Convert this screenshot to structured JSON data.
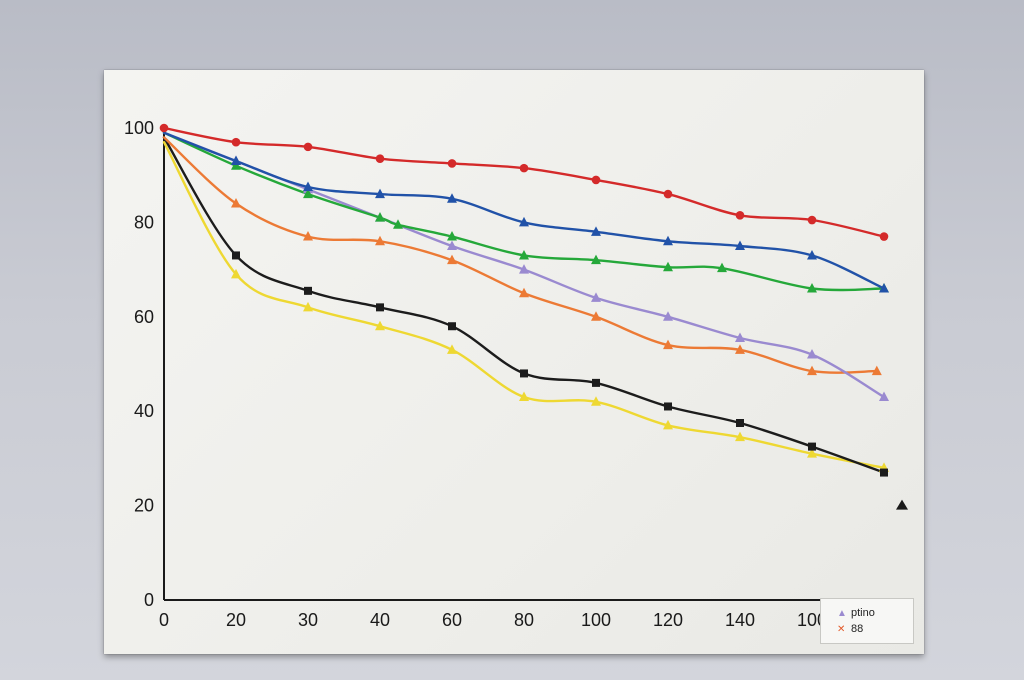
{
  "chart_data": {
    "type": "line",
    "title": "",
    "xlabel": "",
    "ylabel": "",
    "x_tick_labels": [
      "0",
      "20",
      "30",
      "40",
      "60",
      "80",
      "100",
      "120",
      "140",
      "100"
    ],
    "y_tick_labels": [
      "0",
      "20",
      "40",
      "60",
      "80",
      "100"
    ],
    "ylim": [
      0,
      100
    ],
    "grid": false,
    "legend_position": "bottom-right",
    "legend_entries": [
      {
        "text": "ptino",
        "marker": "triangle",
        "color": "#9a8ad0"
      },
      {
        "text": "88",
        "marker": "cross",
        "color": "#e35a2a"
      }
    ],
    "stray_marker": {
      "x": 205,
      "y": 20,
      "color": "#1a1a1a"
    },
    "x": [
      0,
      20,
      40,
      60,
      80,
      100,
      120,
      140,
      160,
      180,
      200
    ],
    "series": [
      {
        "color": "#d42a2a",
        "marker": "circle",
        "points": [
          [
            0,
            100
          ],
          [
            20,
            97
          ],
          [
            40,
            96
          ],
          [
            60,
            93.5
          ],
          [
            80,
            92.5
          ],
          [
            100,
            91.5
          ],
          [
            120,
            89
          ],
          [
            140,
            86
          ],
          [
            160,
            81.5
          ],
          [
            180,
            80.5
          ],
          [
            200,
            77
          ]
        ]
      },
      {
        "color": "#2152a8",
        "marker": "triangle",
        "points": [
          [
            0,
            99
          ],
          [
            20,
            93
          ],
          [
            40,
            87.5
          ],
          [
            60,
            86
          ],
          [
            80,
            85
          ],
          [
            100,
            80
          ],
          [
            120,
            78
          ],
          [
            140,
            76
          ],
          [
            160,
            75
          ],
          [
            180,
            73
          ],
          [
            200,
            66
          ]
        ]
      },
      {
        "color": "#25a83a",
        "marker": "triangle",
        "points": [
          [
            0,
            99
          ],
          [
            20,
            92
          ],
          [
            40,
            86
          ],
          [
            60,
            81
          ],
          [
            65,
            79.5
          ],
          [
            80,
            77
          ],
          [
            100,
            73
          ],
          [
            120,
            72
          ],
          [
            140,
            70.5
          ],
          [
            155,
            70.3
          ],
          [
            180,
            66
          ],
          [
            200,
            66
          ]
        ]
      },
      {
        "color": "#9a8ad0",
        "marker": "triangle",
        "points": [
          [
            0,
            99
          ],
          [
            20,
            93
          ],
          [
            40,
            87
          ],
          [
            60,
            81
          ],
          [
            80,
            75
          ],
          [
            100,
            70
          ],
          [
            120,
            64
          ],
          [
            140,
            60
          ],
          [
            160,
            55.5
          ],
          [
            180,
            52
          ],
          [
            200,
            43
          ]
        ]
      },
      {
        "color": "#ec7a35",
        "marker": "triangle",
        "points": [
          [
            0,
            98
          ],
          [
            20,
            84
          ],
          [
            40,
            77
          ],
          [
            60,
            76
          ],
          [
            80,
            72
          ],
          [
            100,
            65
          ],
          [
            120,
            60
          ],
          [
            140,
            54
          ],
          [
            160,
            53
          ],
          [
            180,
            48.5
          ],
          [
            198,
            48.5
          ]
        ]
      },
      {
        "color": "#1c1c1c",
        "marker": "square",
        "points": [
          [
            0,
            98
          ],
          [
            20,
            73
          ],
          [
            40,
            65.5
          ],
          [
            60,
            62
          ],
          [
            80,
            58
          ],
          [
            100,
            48
          ],
          [
            120,
            46
          ],
          [
            140,
            41
          ],
          [
            160,
            37.5
          ],
          [
            180,
            32.5
          ],
          [
            200,
            27
          ]
        ]
      },
      {
        "color": "#eed832",
        "marker": "triangle",
        "points": [
          [
            0,
            97
          ],
          [
            20,
            69
          ],
          [
            40,
            62
          ],
          [
            60,
            58
          ],
          [
            80,
            53
          ],
          [
            100,
            43
          ],
          [
            120,
            42
          ],
          [
            140,
            37
          ],
          [
            160,
            34.5
          ],
          [
            180,
            31
          ],
          [
            200,
            28
          ]
        ]
      }
    ]
  }
}
